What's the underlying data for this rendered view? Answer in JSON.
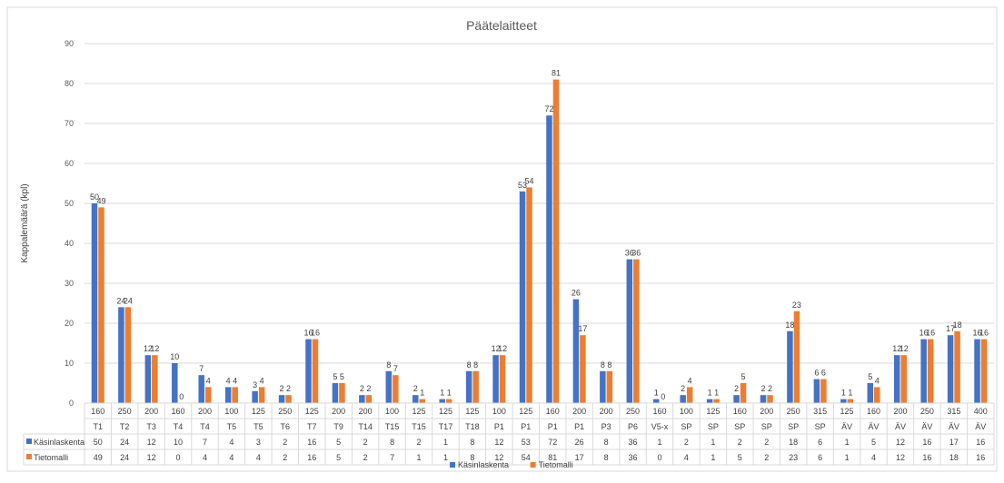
{
  "chart_data": {
    "type": "bar",
    "title": "Päätelaitteet",
    "ylabel": "Kappalemäärä (kpl)",
    "xlabel": "",
    "ylim": [
      0,
      90
    ],
    "yticks": [
      0,
      10,
      20,
      30,
      40,
      50,
      60,
      70,
      80,
      90
    ],
    "grid": true,
    "legend_position": "bottom",
    "categories_top": [
      "160",
      "250",
      "200",
      "160",
      "200",
      "100",
      "125",
      "250",
      "125",
      "200",
      "200",
      "100",
      "125",
      "125",
      "125",
      "100",
      "125",
      "160",
      "200",
      "200",
      "250",
      "160",
      "100",
      "125",
      "160",
      "200",
      "250",
      "315",
      "125",
      "160",
      "200",
      "250",
      "315",
      "400"
    ],
    "categories_bottom": [
      "T1",
      "T2",
      "T3",
      "T4",
      "T4",
      "T5",
      "T5",
      "T6",
      "T7",
      "T9",
      "T14",
      "T15",
      "T15",
      "T17",
      "T18",
      "P1",
      "P1",
      "P1",
      "P1",
      "P3",
      "P6",
      "V5-x",
      "SP",
      "SP",
      "SP",
      "SP",
      "SP",
      "SP",
      "ÄV",
      "ÄV",
      "ÄV",
      "ÄV",
      "ÄV",
      "ÄV"
    ],
    "series": [
      {
        "name": "Käsinlaskenta",
        "color": "#4472C4",
        "values": [
          50,
          24,
          12,
          10,
          7,
          4,
          3,
          2,
          16,
          5,
          2,
          8,
          2,
          1,
          8,
          12,
          53,
          72,
          26,
          8,
          36,
          1,
          2,
          1,
          2,
          2,
          18,
          6,
          1,
          5,
          12,
          16,
          17,
          16
        ]
      },
      {
        "name": "Tietomalli",
        "color": "#ED7D31",
        "values": [
          49,
          24,
          12,
          0,
          4,
          4,
          4,
          2,
          16,
          5,
          2,
          7,
          1,
          1,
          8,
          12,
          54,
          81,
          17,
          8,
          36,
          0,
          4,
          1,
          5,
          2,
          23,
          6,
          1,
          4,
          12,
          16,
          18,
          16
        ]
      }
    ]
  }
}
